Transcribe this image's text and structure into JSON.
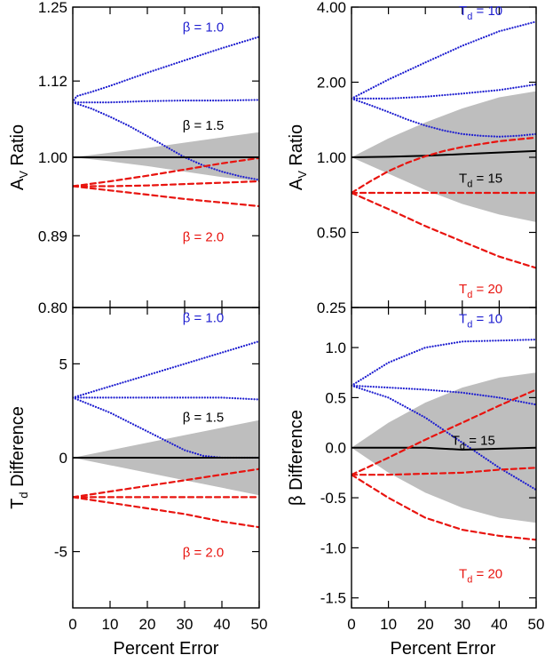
{
  "figure": {
    "xlabel": "Percent Error"
  },
  "colors": {
    "blue": "#1f1fd0",
    "red": "#e8140f",
    "black": "#000000",
    "band": "#bebebe"
  },
  "chart_data": [
    {
      "id": "p_top_left",
      "type": "line",
      "xlabel": "",
      "ylabel": "A",
      "ylabel_sub": "V",
      "ylabel_rest": " Ratio",
      "yscale": "log",
      "xlim": [
        0,
        50
      ],
      "ylim": [
        0.8,
        1.25
      ],
      "yticks": [
        0.8,
        0.89,
        1.0,
        1.12,
        1.25
      ],
      "ytick_labels": [
        "0.80",
        "0.89",
        "1.00",
        "1.12",
        "1.25"
      ],
      "xticks": [
        0,
        10,
        20,
        30,
        40,
        50
      ],
      "xtick_labels": [],
      "band": {
        "x": [
          0,
          10,
          20,
          30,
          40,
          50
        ],
        "lower": [
          1.0,
          0.994,
          0.987,
          0.979,
          0.971,
          0.965
        ],
        "upper": [
          1.0,
          1.007,
          1.014,
          1.022,
          1.03,
          1.038
        ]
      },
      "series": [
        {
          "name": "beta1.0",
          "color": "blue",
          "style": "dotted",
          "x": [
            0,
            1,
            5,
            10,
            20,
            30,
            40,
            50
          ],
          "y": [
            1.085,
            1.095,
            1.102,
            1.112,
            1.134,
            1.155,
            1.176,
            1.196
          ]
        },
        {
          "name": "beta1.5-flat",
          "color": "blue",
          "style": "dotted",
          "x": [
            0,
            10,
            20,
            30,
            40,
            50
          ],
          "y": [
            1.085,
            1.085,
            1.087,
            1.088,
            1.088,
            1.089
          ]
        },
        {
          "name": "beta1.5-down",
          "color": "blue",
          "style": "dotted",
          "x": [
            0,
            5,
            10,
            15,
            20,
            25,
            30,
            35,
            40,
            45,
            50
          ],
          "y": [
            1.085,
            1.075,
            1.062,
            1.048,
            1.032,
            1.016,
            1.0,
            0.988,
            0.979,
            0.972,
            0.967
          ]
        },
        {
          "name": "beta2.0-up",
          "color": "red",
          "style": "dashed",
          "x": [
            0,
            10,
            20,
            30,
            40,
            50
          ],
          "y": [
            0.958,
            0.965,
            0.973,
            0.982,
            0.991,
            0.999
          ]
        },
        {
          "name": "beta2.0-flat",
          "color": "red",
          "style": "dashed",
          "x": [
            0,
            10,
            20,
            30,
            40,
            50
          ],
          "y": [
            0.958,
            0.958,
            0.959,
            0.961,
            0.963,
            0.965
          ]
        },
        {
          "name": "beta2.0-down",
          "color": "red",
          "style": "dashed",
          "x": [
            0,
            10,
            20,
            30,
            40,
            50
          ],
          "y": [
            0.958,
            0.952,
            0.946,
            0.94,
            0.935,
            0.93
          ]
        },
        {
          "name": "unity",
          "color": "black",
          "style": "solid",
          "x": [
            0,
            50
          ],
          "y": [
            1.0,
            1.0
          ]
        }
      ],
      "annotations": [
        {
          "text": "β = 1.0",
          "color": "blue",
          "x": 35,
          "y": 1.215
        },
        {
          "text": "β = 1.5",
          "color": "black",
          "x": 35,
          "y": 1.05
        },
        {
          "text": "β = 2.0",
          "color": "red",
          "x": 35,
          "y": 0.89
        }
      ]
    },
    {
      "id": "p_top_right",
      "type": "line",
      "xlabel": "",
      "ylabel": "A",
      "ylabel_sub": "V",
      "ylabel_rest": " Ratio",
      "yscale": "log",
      "xlim": [
        0,
        50
      ],
      "ylim": [
        0.25,
        4.0
      ],
      "yticks": [
        0.25,
        0.5,
        1.0,
        2.0,
        4.0
      ],
      "ytick_labels": [
        "0.25",
        "0.50",
        "1.00",
        "2.00",
        "4.00"
      ],
      "xticks": [
        0,
        10,
        20,
        30,
        40,
        50
      ],
      "xtick_labels": [],
      "band": {
        "x": [
          0,
          10,
          20,
          30,
          40,
          50
        ],
        "lower": [
          1.0,
          0.86,
          0.74,
          0.65,
          0.59,
          0.55
        ],
        "upper": [
          1.0,
          1.19,
          1.38,
          1.57,
          1.74,
          1.84
        ]
      },
      "series": [
        {
          "name": "Td10-up",
          "color": "blue",
          "style": "dotted",
          "x": [
            0,
            10,
            20,
            30,
            40,
            50
          ],
          "y": [
            1.72,
            2.05,
            2.4,
            2.8,
            3.2,
            3.5
          ]
        },
        {
          "name": "Td10-mid",
          "color": "blue",
          "style": "dotted",
          "x": [
            0,
            10,
            20,
            30,
            40,
            50
          ],
          "y": [
            1.72,
            1.72,
            1.75,
            1.8,
            1.86,
            1.96
          ]
        },
        {
          "name": "Td10-down",
          "color": "blue",
          "style": "dotted",
          "x": [
            0,
            5,
            10,
            15,
            20,
            25,
            30,
            35,
            40,
            45,
            50
          ],
          "y": [
            1.72,
            1.62,
            1.52,
            1.42,
            1.34,
            1.28,
            1.24,
            1.22,
            1.21,
            1.22,
            1.24
          ]
        },
        {
          "name": "Td15",
          "color": "black",
          "style": "solid",
          "x": [
            0,
            10,
            20,
            30,
            40,
            50
          ],
          "y": [
            1.0,
            1.005,
            1.015,
            1.03,
            1.045,
            1.06
          ]
        },
        {
          "name": "Td20-up",
          "color": "red",
          "style": "dashed",
          "x": [
            0,
            5,
            10,
            15,
            20,
            25,
            30,
            35,
            40,
            45,
            50
          ],
          "y": [
            0.72,
            0.8,
            0.88,
            0.95,
            1.01,
            1.06,
            1.1,
            1.13,
            1.16,
            1.18,
            1.2
          ]
        },
        {
          "name": "Td20-flat",
          "color": "red",
          "style": "dashed",
          "x": [
            0,
            10,
            20,
            30,
            40,
            50
          ],
          "y": [
            0.72,
            0.72,
            0.72,
            0.72,
            0.72,
            0.72
          ]
        },
        {
          "name": "Td20-down",
          "color": "red",
          "style": "dashed",
          "x": [
            0,
            10,
            20,
            30,
            40,
            50
          ],
          "y": [
            0.72,
            0.62,
            0.53,
            0.46,
            0.4,
            0.36
          ]
        }
      ],
      "annotations": [
        {
          "text": "T",
          "sub": "d",
          "rest": " = 10",
          "color": "blue",
          "x": 35,
          "y": 3.9
        },
        {
          "text": "T",
          "sub": "d",
          "rest": " = 15",
          "color": "black",
          "x": 35,
          "y": 0.83
        },
        {
          "text": "T",
          "sub": "d",
          "rest": " = 20",
          "color": "red",
          "x": 35,
          "y": 0.3
        }
      ]
    },
    {
      "id": "p_bottom_left",
      "type": "line",
      "xlabel": "Percent Error",
      "ylabel": "T",
      "ylabel_sub": "d",
      "ylabel_rest": " Difference",
      "yscale": "linear",
      "xlim": [
        0,
        50
      ],
      "ylim": [
        -8,
        8
      ],
      "yticks": [
        -5,
        0,
        5
      ],
      "ytick_labels": [
        "-5",
        "0",
        "5"
      ],
      "xticks": [
        0,
        10,
        20,
        30,
        40,
        50
      ],
      "xtick_labels": [
        "0",
        "10",
        "20",
        "30",
        "40",
        "50"
      ],
      "band": {
        "x": [
          0,
          10,
          20,
          30,
          40,
          50
        ],
        "lower": [
          0,
          -0.4,
          -0.8,
          -1.2,
          -1.6,
          -2.0
        ],
        "upper": [
          0,
          0.4,
          0.8,
          1.2,
          1.6,
          2.0
        ]
      },
      "series": [
        {
          "name": "beta1.0",
          "color": "blue",
          "style": "dotted",
          "x": [
            0,
            10,
            20,
            30,
            40,
            50
          ],
          "y": [
            3.2,
            3.8,
            4.4,
            5.0,
            5.6,
            6.2
          ]
        },
        {
          "name": "beta1.5-flat",
          "color": "blue",
          "style": "dotted",
          "x": [
            0,
            10,
            20,
            30,
            40,
            50
          ],
          "y": [
            3.2,
            3.2,
            3.2,
            3.2,
            3.2,
            3.1
          ]
        },
        {
          "name": "beta1.5-down",
          "color": "blue",
          "style": "dotted",
          "x": [
            0,
            5,
            10,
            15,
            20,
            25,
            30,
            35,
            40,
            45,
            50
          ],
          "y": [
            3.2,
            2.8,
            2.4,
            1.9,
            1.4,
            0.9,
            0.4,
            0.1,
            0.0,
            0.0,
            0.0
          ]
        },
        {
          "name": "beta2.0-up",
          "color": "red",
          "style": "dashed",
          "x": [
            0,
            10,
            20,
            30,
            40,
            50
          ],
          "y": [
            -2.1,
            -1.8,
            -1.5,
            -1.2,
            -0.9,
            -0.6
          ]
        },
        {
          "name": "beta2.0-flat",
          "color": "red",
          "style": "dashed",
          "x": [
            0,
            10,
            20,
            30,
            40,
            50
          ],
          "y": [
            -2.1,
            -2.1,
            -2.1,
            -2.1,
            -2.1,
            -2.1
          ]
        },
        {
          "name": "beta2.0-down",
          "color": "red",
          "style": "dashed",
          "x": [
            0,
            10,
            20,
            30,
            40,
            50
          ],
          "y": [
            -2.1,
            -2.4,
            -2.7,
            -3.0,
            -3.4,
            -3.7
          ]
        },
        {
          "name": "zero",
          "color": "black",
          "style": "solid",
          "x": [
            0,
            50
          ],
          "y": [
            0,
            0
          ]
        }
      ],
      "annotations": [
        {
          "text": "β = 1.0",
          "color": "blue",
          "x": 35,
          "y": 7.5
        },
        {
          "text": "β = 1.5",
          "color": "black",
          "x": 35,
          "y": 2.2
        },
        {
          "text": "β = 2.0",
          "color": "red",
          "x": 35,
          "y": -5.0
        }
      ]
    },
    {
      "id": "p_bottom_right",
      "type": "line",
      "xlabel": "Percent Error",
      "ylabel": "β Difference",
      "ylabel_sub": "",
      "ylabel_rest": "",
      "yscale": "linear",
      "xlim": [
        0,
        50
      ],
      "ylim": [
        -1.6,
        1.4
      ],
      "yticks": [
        -1.5,
        -1.0,
        -0.5,
        0.0,
        0.5,
        1.0
      ],
      "ytick_labels": [
        "-1.5",
        "-1.0",
        "-0.5",
        "0.0",
        "0.5",
        "1.0"
      ],
      "xticks": [
        0,
        10,
        20,
        30,
        40,
        50
      ],
      "xtick_labels": [
        "0",
        "10",
        "20",
        "30",
        "40",
        "50"
      ],
      "band": {
        "x": [
          0,
          10,
          20,
          30,
          40,
          50
        ],
        "lower": [
          0,
          -0.25,
          -0.45,
          -0.6,
          -0.7,
          -0.75
        ],
        "upper": [
          0,
          0.25,
          0.45,
          0.6,
          0.7,
          0.75
        ]
      },
      "series": [
        {
          "name": "Td10-up",
          "color": "blue",
          "style": "dotted",
          "x": [
            0,
            10,
            20,
            30,
            40,
            50
          ],
          "y": [
            0.62,
            0.85,
            1.0,
            1.06,
            1.07,
            1.08
          ]
        },
        {
          "name": "Td10-mid",
          "color": "blue",
          "style": "dotted",
          "x": [
            0,
            10,
            20,
            30,
            40,
            50
          ],
          "y": [
            0.62,
            0.6,
            0.58,
            0.55,
            0.5,
            0.43
          ]
        },
        {
          "name": "Td10-down",
          "color": "blue",
          "style": "dotted",
          "x": [
            0,
            10,
            20,
            30,
            40,
            50
          ],
          "y": [
            0.62,
            0.5,
            0.3,
            0.05,
            -0.2,
            -0.42
          ]
        },
        {
          "name": "Td15",
          "color": "black",
          "style": "solid",
          "x": [
            0,
            10,
            20,
            30,
            40,
            50
          ],
          "y": [
            0.0,
            0.0,
            0.0,
            -0.02,
            -0.01,
            0.0
          ]
        },
        {
          "name": "Td20-up",
          "color": "red",
          "style": "dashed",
          "x": [
            0,
            10,
            20,
            30,
            40,
            50
          ],
          "y": [
            -0.27,
            -0.1,
            0.08,
            0.25,
            0.42,
            0.58
          ]
        },
        {
          "name": "Td20-flat",
          "color": "red",
          "style": "dashed",
          "x": [
            0,
            10,
            20,
            30,
            40,
            50
          ],
          "y": [
            -0.27,
            -0.27,
            -0.26,
            -0.25,
            -0.22,
            -0.2
          ]
        },
        {
          "name": "Td20-down",
          "color": "red",
          "style": "dashed",
          "x": [
            0,
            10,
            20,
            30,
            40,
            50
          ],
          "y": [
            -0.27,
            -0.5,
            -0.7,
            -0.82,
            -0.88,
            -0.92
          ]
        }
      ],
      "annotations": [
        {
          "text": "T",
          "sub": "d",
          "rest": " = 10",
          "color": "blue",
          "x": 35,
          "y": 1.3
        },
        {
          "text": "T",
          "sub": "d",
          "rest": " = 15",
          "color": "black",
          "x": 33,
          "y": 0.08
        },
        {
          "text": "T",
          "sub": "d",
          "rest": " = 20",
          "color": "red",
          "x": 35,
          "y": -1.25
        }
      ]
    }
  ]
}
